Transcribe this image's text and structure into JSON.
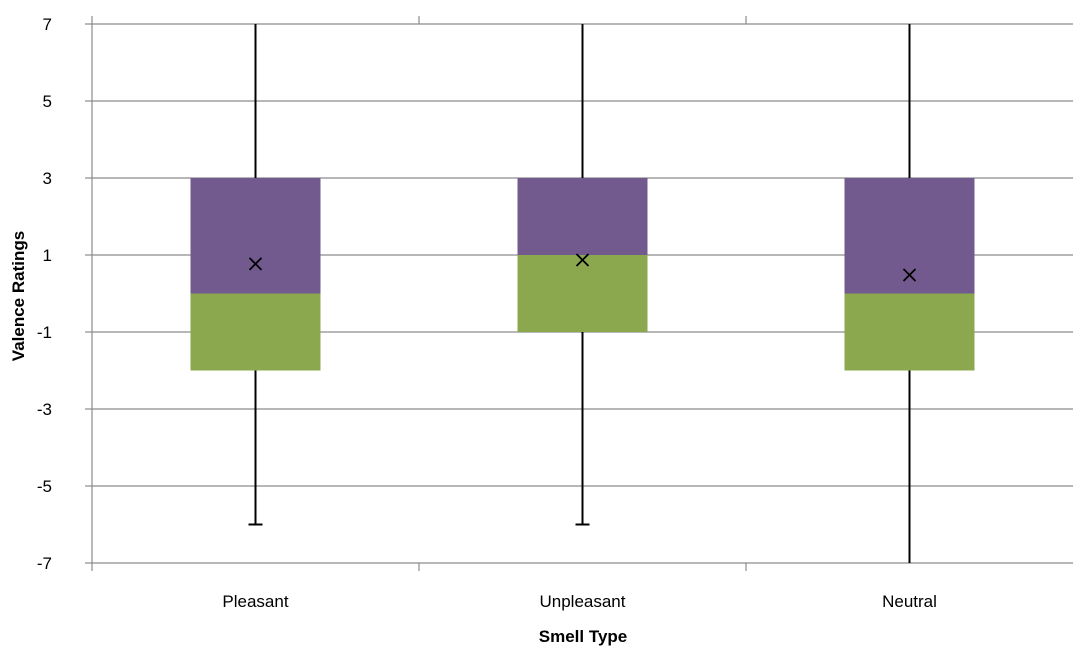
{
  "chart_data": {
    "type": "box",
    "title": "",
    "xlabel": "Smell Type",
    "ylabel": "Valence Ratings",
    "ylim": [
      -7,
      7
    ],
    "yticks": [
      -7,
      -5,
      -3,
      -1,
      1,
      3,
      5,
      7
    ],
    "ytick_labels": [
      "-7",
      "-5",
      "-3",
      "-1",
      "1",
      "3",
      "5",
      "7"
    ],
    "grid": true,
    "legend": "none",
    "categories": [
      "Pleasant",
      "Unpleasant",
      "Neutral"
    ],
    "boxes": [
      {
        "category": "Pleasant",
        "min": -6,
        "q1": -2,
        "median": 0,
        "q3": 3,
        "max": 7,
        "mean": 0.77
      },
      {
        "category": "Unpleasant",
        "min": -6,
        "q1": -1,
        "median": 1,
        "q3": 3,
        "max": 7,
        "mean": 0.87
      },
      {
        "category": "Neutral",
        "min": -7,
        "q1": -2,
        "median": 0,
        "q3": 3,
        "max": 7,
        "mean": 0.48
      }
    ],
    "colors": {
      "upper_box": "#725a8e",
      "lower_box": "#8ba84f",
      "whisker": "#000000",
      "grid": "#8c8c8c",
      "mean_marker": "#000000"
    }
  }
}
